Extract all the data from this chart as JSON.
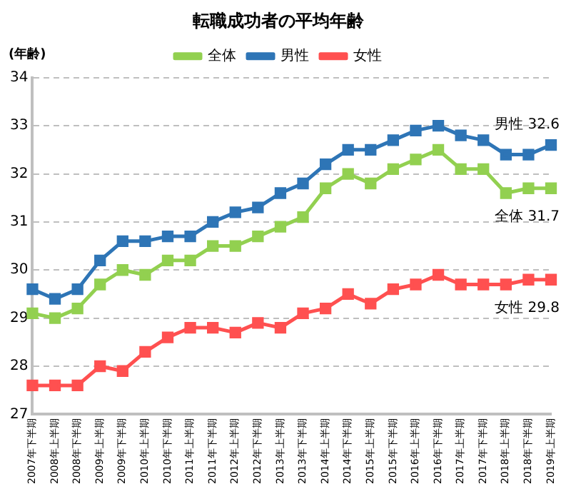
{
  "chart_data": {
    "type": "line",
    "title": "転職成功者の平均年齢",
    "ylabel": "(年齢)",
    "categories": [
      "2007年下半期",
      "2008年上半期",
      "2008年下半期",
      "2009年上半期",
      "2009年下半期",
      "2010年上半期",
      "2010年下半期",
      "2011年上半期",
      "2011年下半期",
      "2012年上半期",
      "2012年下半期",
      "2013年上半期",
      "2013年下半期",
      "2014年上半期",
      "2014年下半期",
      "2015年上半期",
      "2015年下半期",
      "2016年上半期",
      "2016年下半期",
      "2017年上半期",
      "2017年下半期",
      "2018年上半期",
      "2018年下半期",
      "2019年上半期"
    ],
    "series": [
      {
        "name": "全体",
        "color": "#92d050",
        "values": [
          29.1,
          29.0,
          29.2,
          29.7,
          30.0,
          29.9,
          30.2,
          30.2,
          30.5,
          30.5,
          30.7,
          30.9,
          31.1,
          31.7,
          32.0,
          31.8,
          32.1,
          32.3,
          32.5,
          32.1,
          32.1,
          31.6,
          31.7,
          31.7
        ]
      },
      {
        "name": "男性",
        "color": "#2e75b6",
        "values": [
          29.6,
          29.4,
          29.6,
          30.2,
          30.6,
          30.6,
          30.7,
          30.7,
          31.0,
          31.2,
          31.3,
          31.6,
          31.8,
          32.2,
          32.5,
          32.5,
          32.7,
          32.9,
          33.0,
          32.8,
          32.7,
          32.4,
          32.4,
          32.6
        ]
      },
      {
        "name": "女性",
        "color": "#ff5050",
        "values": [
          27.6,
          27.6,
          27.6,
          28.0,
          27.9,
          28.3,
          28.6,
          28.8,
          28.8,
          28.7,
          28.9,
          28.8,
          29.1,
          29.2,
          29.5,
          29.3,
          29.6,
          29.7,
          29.9,
          29.7,
          29.7,
          29.7,
          29.8,
          29.8
        ]
      }
    ],
    "annotations": [
      {
        "text": "男性 32.6",
        "x": "2019年上半期",
        "y": 32.6
      },
      {
        "text": "全体 31.7",
        "x": "2019年上半期",
        "y": 31.7
      },
      {
        "text": "女性 29.8",
        "x": "2019年上半期",
        "y": 29.8
      }
    ],
    "ylim": [
      27,
      34
    ],
    "yticks": [
      27,
      28,
      29,
      30,
      31,
      32,
      33,
      34
    ],
    "grid": "y",
    "legend": "top",
    "marker": "square",
    "line_style": "solid"
  }
}
